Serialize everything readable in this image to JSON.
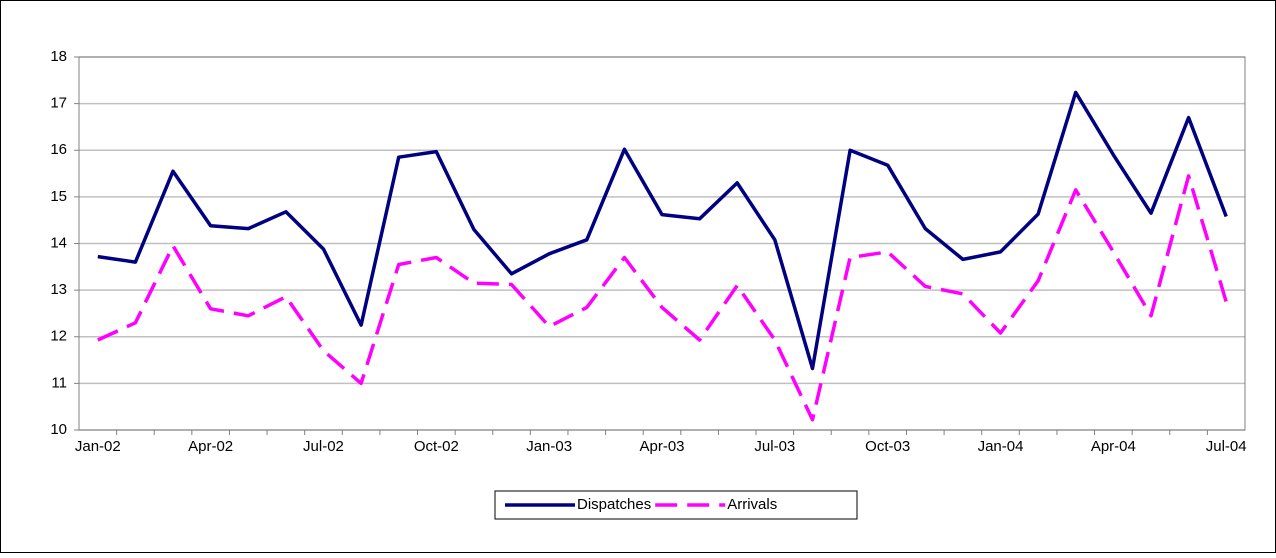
{
  "chart_data": {
    "type": "line",
    "categories": [
      "Jan-02",
      null,
      null,
      "Apr-02",
      null,
      null,
      "Jul-02",
      null,
      null,
      "Oct-02",
      null,
      null,
      "Jan-03",
      null,
      null,
      "Apr-03",
      null,
      null,
      "Jul-03",
      null,
      null,
      "Oct-03",
      null,
      null,
      "Jan-04",
      null,
      null,
      "Apr-04",
      null,
      null,
      "Jul-04"
    ],
    "series": [
      {
        "name": "Dispatches",
        "color": "#000080",
        "dash": false,
        "values": [
          13.72,
          13.6,
          15.55,
          14.38,
          14.32,
          14.68,
          13.88,
          12.25,
          15.85,
          15.97,
          14.3,
          13.35,
          13.78,
          14.08,
          16.02,
          14.62,
          14.53,
          15.3,
          14.08,
          11.32,
          16.0,
          15.68,
          14.32,
          13.66,
          13.82,
          14.63,
          17.24,
          15.9,
          14.65,
          16.7,
          14.58
        ]
      },
      {
        "name": "Arrivals",
        "color": "#ff00ff",
        "dash": true,
        "values": [
          11.93,
          12.3,
          13.95,
          12.6,
          12.45,
          12.86,
          11.7,
          11.0,
          13.55,
          13.7,
          13.15,
          13.12,
          12.22,
          12.63,
          13.7,
          12.63,
          11.93,
          13.1,
          11.93,
          10.22,
          13.7,
          13.82,
          13.08,
          12.92,
          12.08,
          13.2,
          15.15,
          13.82,
          12.45,
          15.45,
          12.75
        ]
      }
    ],
    "ylim": [
      10,
      18
    ],
    "yticks": [
      10,
      11,
      12,
      13,
      14,
      15,
      16,
      17,
      18
    ],
    "grid": true,
    "legend": "bottom"
  }
}
